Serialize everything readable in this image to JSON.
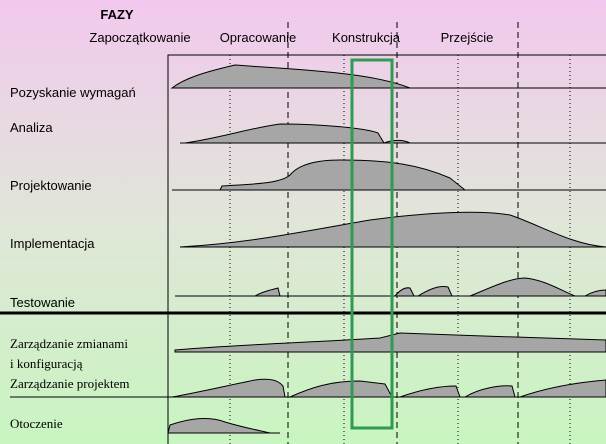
{
  "header": {
    "title": "FAZY"
  },
  "phases": [
    "Zapoczątkowanie",
    "Opracowanie",
    "Konstrukcja",
    "Przejście"
  ],
  "disciplines": [
    "Pozyskanie wymagań",
    "Analiza",
    "Projektowanie",
    "Implementacja",
    "Testowanie",
    "Zarządzanie zmianami",
    "i konfiguracją",
    "Zarządzanie projektem",
    "Otoczenie"
  ]
}
